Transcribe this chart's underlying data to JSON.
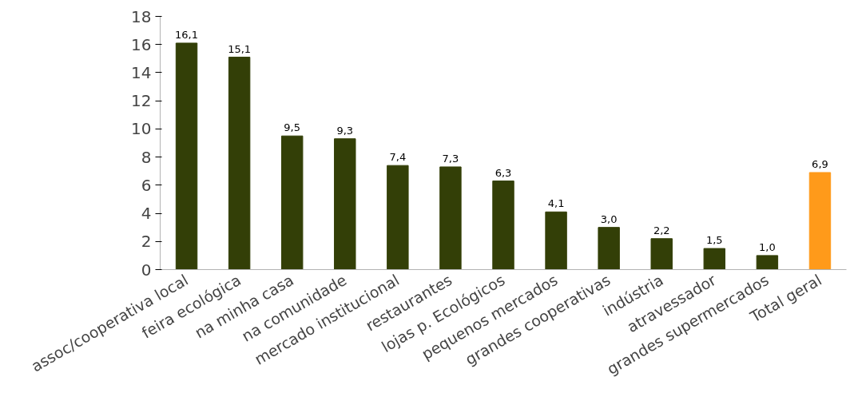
{
  "chart_data": {
    "type": "bar",
    "categories": [
      "assoc/cooperativa local",
      "feira ecológica",
      "na minha casa",
      "na comunidade",
      "mercado institucional",
      "restaurantes",
      "lojas p. Ecológicos",
      "pequenos mercados",
      "grandes cooperativas",
      "indústria",
      "atravessador",
      "grandes supermercados",
      "Total geral"
    ],
    "values": [
      16.1,
      15.1,
      9.5,
      9.3,
      7.4,
      7.3,
      6.3,
      4.1,
      3.0,
      2.2,
      1.5,
      1.0,
      6.9
    ],
    "colors": [
      "#333f07",
      "#333f07",
      "#333f07",
      "#333f07",
      "#333f07",
      "#333f07",
      "#333f07",
      "#333f07",
      "#333f07",
      "#333f07",
      "#333f07",
      "#333f07",
      "#ff9a1a"
    ],
    "value_labels": [
      "16,1",
      "15,1",
      "9,5",
      "9,3",
      "7,4",
      "7,3",
      "6,3",
      "4,1",
      "3,0",
      "2,2",
      "1,5",
      "1,0",
      "6,9"
    ],
    "ylim": [
      0,
      18
    ],
    "yticks": [
      0,
      2,
      4,
      6,
      8,
      10,
      12,
      14,
      16,
      18
    ],
    "grid": false
  }
}
